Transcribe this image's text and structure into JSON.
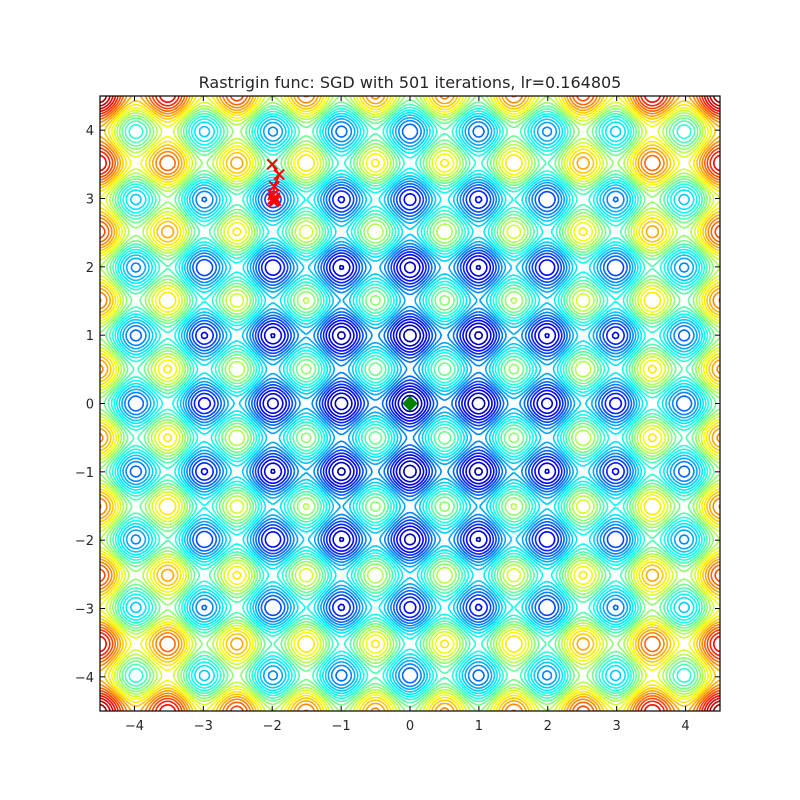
{
  "chart_data": {
    "type": "contour",
    "title": "Rastrigin func: SGD with 501 iterations, lr=0.164805",
    "function": "rastrigin",
    "xlim": [
      -4.5,
      4.5
    ],
    "ylim": [
      -4.5,
      4.5
    ],
    "xticks": [
      -4,
      -3,
      -2,
      -1,
      0,
      1,
      2,
      3,
      4
    ],
    "yticks": [
      -4,
      -3,
      -2,
      -1,
      0,
      1,
      2,
      3,
      4
    ],
    "xtick_labels": [
      "−4",
      "−3",
      "−2",
      "−1",
      "0",
      "1",
      "2",
      "3",
      "4"
    ],
    "ytick_labels": [
      "−4",
      "−3",
      "−2",
      "−1",
      "0",
      "1",
      "2",
      "3",
      "4"
    ],
    "colormap": "jet",
    "grid": false,
    "global_minimum": {
      "x": 0,
      "y": 0,
      "color": "#008000",
      "marker": "diamond"
    },
    "sgd_path": {
      "color": "#ff0000",
      "marker": "x",
      "points": [
        {
          "x": -2.0,
          "y": 3.5
        },
        {
          "x": -1.9,
          "y": 3.35
        },
        {
          "x": -1.97,
          "y": 3.18
        },
        {
          "x": -1.99,
          "y": 3.05
        },
        {
          "x": -1.96,
          "y": 2.98
        },
        {
          "x": -1.97,
          "y": 3.0
        },
        {
          "x": -1.98,
          "y": 2.95
        },
        {
          "x": -1.95,
          "y": 2.97
        },
        {
          "x": -1.99,
          "y": 2.99
        },
        {
          "x": -1.96,
          "y": 3.01
        }
      ]
    }
  }
}
